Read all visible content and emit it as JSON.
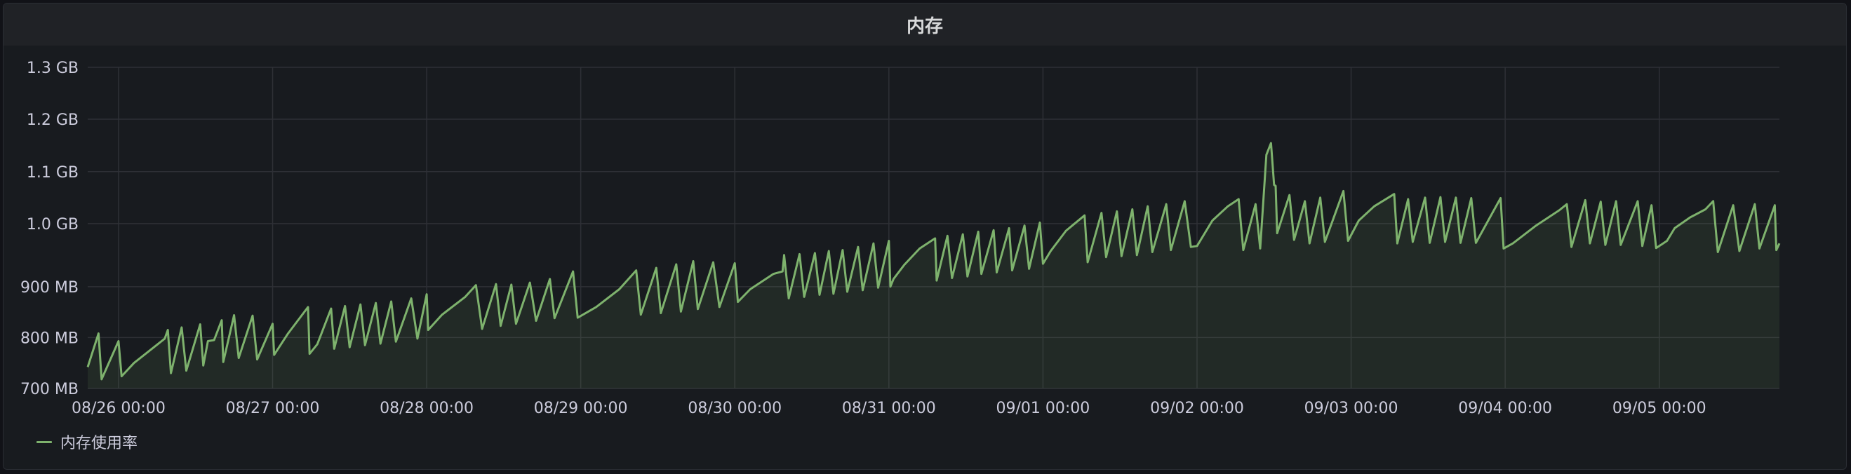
{
  "panel": {
    "title": "内存"
  },
  "colors": {
    "series": "#7eb26d",
    "grid": "#2e3036",
    "background": "#181b1f"
  },
  "chart_data": {
    "type": "area",
    "title": "内存",
    "ylim_mb": [
      700,
      1331
    ],
    "y_ticks": [
      {
        "value": 700,
        "label": "700 MB"
      },
      {
        "value": 800,
        "label": "800 MB"
      },
      {
        "value": 900,
        "label": "900 MB"
      },
      {
        "value": 1024,
        "label": "1.0 GB"
      },
      {
        "value": 1126,
        "label": "1.1 GB"
      },
      {
        "value": 1229,
        "label": "1.2 GB"
      },
      {
        "value": 1331,
        "label": "1.3 GB"
      }
    ],
    "xlim_days": [
      -0.2,
      10.78
    ],
    "x_ticks": [
      {
        "value": 0,
        "label": "08/26 00:00"
      },
      {
        "value": 1,
        "label": "08/27 00:00"
      },
      {
        "value": 2,
        "label": "08/28 00:00"
      },
      {
        "value": 3,
        "label": "08/29 00:00"
      },
      {
        "value": 4,
        "label": "08/30 00:00"
      },
      {
        "value": 5,
        "label": "08/31 00:00"
      },
      {
        "value": 6,
        "label": "09/01 00:00"
      },
      {
        "value": 7,
        "label": "09/02 00:00"
      },
      {
        "value": 8,
        "label": "09/03 00:00"
      },
      {
        "value": 9,
        "label": "09/04 00:00"
      },
      {
        "value": 10,
        "label": "09/05 00:00"
      }
    ],
    "series": [
      {
        "name": "内存使用率",
        "points": [
          [
            -0.2,
            742
          ],
          [
            -0.13,
            808
          ],
          [
            -0.11,
            718
          ],
          [
            0.0,
            793
          ],
          [
            0.02,
            724
          ],
          [
            0.1,
            750
          ],
          [
            0.3,
            798
          ],
          [
            0.32,
            815
          ],
          [
            0.34,
            730
          ],
          [
            0.41,
            820
          ],
          [
            0.44,
            735
          ],
          [
            0.53,
            826
          ],
          [
            0.55,
            745
          ],
          [
            0.58,
            793
          ],
          [
            0.62,
            795
          ],
          [
            0.67,
            834
          ],
          [
            0.68,
            752
          ],
          [
            0.75,
            844
          ],
          [
            0.78,
            760
          ],
          [
            0.87,
            843
          ],
          [
            0.9,
            757
          ],
          [
            1.0,
            827
          ],
          [
            1.01,
            766
          ],
          [
            1.1,
            808
          ],
          [
            1.23,
            860
          ],
          [
            1.24,
            768
          ],
          [
            1.29,
            787
          ],
          [
            1.38,
            857
          ],
          [
            1.4,
            778
          ],
          [
            1.47,
            862
          ],
          [
            1.5,
            781
          ],
          [
            1.57,
            865
          ],
          [
            1.6,
            785
          ],
          [
            1.67,
            868
          ],
          [
            1.7,
            788
          ],
          [
            1.77,
            871
          ],
          [
            1.8,
            792
          ],
          [
            1.9,
            877
          ],
          [
            1.94,
            798
          ],
          [
            2.0,
            885
          ],
          [
            2.01,
            815
          ],
          [
            2.1,
            845
          ],
          [
            2.25,
            880
          ],
          [
            2.32,
            903
          ],
          [
            2.36,
            817
          ],
          [
            2.45,
            905
          ],
          [
            2.48,
            823
          ],
          [
            2.55,
            904
          ],
          [
            2.58,
            827
          ],
          [
            2.67,
            908
          ],
          [
            2.71,
            833
          ],
          [
            2.8,
            915
          ],
          [
            2.83,
            838
          ],
          [
            2.95,
            930
          ],
          [
            2.98,
            839
          ],
          [
            3.1,
            860
          ],
          [
            3.25,
            895
          ],
          [
            3.36,
            932
          ],
          [
            3.39,
            845
          ],
          [
            3.49,
            937
          ],
          [
            3.52,
            848
          ],
          [
            3.62,
            944
          ],
          [
            3.65,
            851
          ],
          [
            3.73,
            950
          ],
          [
            3.76,
            856
          ],
          [
            3.86,
            948
          ],
          [
            3.9,
            860
          ],
          [
            4.0,
            946
          ],
          [
            4.02,
            870
          ],
          [
            4.1,
            895
          ],
          [
            4.25,
            925
          ],
          [
            4.31,
            930
          ],
          [
            4.32,
            962
          ],
          [
            4.35,
            877
          ],
          [
            4.42,
            964
          ],
          [
            4.45,
            880
          ],
          [
            4.52,
            966
          ],
          [
            4.55,
            884
          ],
          [
            4.61,
            970
          ],
          [
            4.64,
            886
          ],
          [
            4.7,
            972
          ],
          [
            4.73,
            890
          ],
          [
            4.8,
            978
          ],
          [
            4.83,
            893
          ],
          [
            4.9,
            985
          ],
          [
            4.93,
            898
          ],
          [
            5.0,
            990
          ],
          [
            5.01,
            900
          ],
          [
            5.03,
            915
          ],
          [
            5.1,
            943
          ],
          [
            5.2,
            975
          ],
          [
            5.3,
            995
          ],
          [
            5.31,
            912
          ],
          [
            5.38,
            1000
          ],
          [
            5.41,
            917
          ],
          [
            5.48,
            1003
          ],
          [
            5.51,
            920
          ],
          [
            5.58,
            1008
          ],
          [
            5.6,
            925
          ],
          [
            5.68,
            1011
          ],
          [
            5.7,
            928
          ],
          [
            5.78,
            1015
          ],
          [
            5.8,
            932
          ],
          [
            5.88,
            1020
          ],
          [
            5.91,
            935
          ],
          [
            5.98,
            1026
          ],
          [
            6.0,
            945
          ],
          [
            6.05,
            970
          ],
          [
            6.15,
            1010
          ],
          [
            6.27,
            1040
          ],
          [
            6.29,
            948
          ],
          [
            6.38,
            1045
          ],
          [
            6.41,
            958
          ],
          [
            6.48,
            1048
          ],
          [
            6.51,
            960
          ],
          [
            6.58,
            1052
          ],
          [
            6.61,
            962
          ],
          [
            6.68,
            1058
          ],
          [
            6.71,
            968
          ],
          [
            6.8,
            1062
          ],
          [
            6.83,
            972
          ],
          [
            6.92,
            1068
          ],
          [
            6.96,
            978
          ],
          [
            7.0,
            980
          ],
          [
            7.1,
            1030
          ],
          [
            7.2,
            1058
          ],
          [
            7.27,
            1072
          ],
          [
            7.3,
            972
          ],
          [
            7.38,
            1062
          ],
          [
            7.41,
            975
          ],
          [
            7.45,
            1159
          ],
          [
            7.48,
            1182
          ],
          [
            7.5,
            1100
          ],
          [
            7.51,
            1098
          ],
          [
            7.52,
            1005
          ],
          [
            7.6,
            1080
          ],
          [
            7.63,
            992
          ],
          [
            7.7,
            1068
          ],
          [
            7.73,
            985
          ],
          [
            7.8,
            1075
          ],
          [
            7.83,
            988
          ],
          [
            7.95,
            1088
          ],
          [
            7.98,
            990
          ],
          [
            8.05,
            1030
          ],
          [
            8.15,
            1058
          ],
          [
            8.28,
            1082
          ],
          [
            8.3,
            985
          ],
          [
            8.37,
            1072
          ],
          [
            8.4,
            988
          ],
          [
            8.48,
            1075
          ],
          [
            8.51,
            986
          ],
          [
            8.58,
            1076
          ],
          [
            8.61,
            988
          ],
          [
            8.68,
            1075
          ],
          [
            8.71,
            986
          ],
          [
            8.78,
            1074
          ],
          [
            8.81,
            986
          ],
          [
            8.97,
            1074
          ],
          [
            8.99,
            975
          ],
          [
            9.05,
            985
          ],
          [
            9.2,
            1020
          ],
          [
            9.35,
            1050
          ],
          [
            9.4,
            1062
          ],
          [
            9.43,
            978
          ],
          [
            9.52,
            1070
          ],
          [
            9.55,
            985
          ],
          [
            9.62,
            1067
          ],
          [
            9.65,
            982
          ],
          [
            9.72,
            1068
          ],
          [
            9.75,
            982
          ],
          [
            9.86,
            1068
          ],
          [
            9.89,
            980
          ],
          [
            9.95,
            1060
          ],
          [
            9.98,
            976
          ],
          [
            10.05,
            990
          ],
          [
            10.1,
            1015
          ],
          [
            10.2,
            1036
          ],
          [
            10.3,
            1052
          ],
          [
            10.35,
            1068
          ],
          [
            10.38,
            968
          ],
          [
            10.48,
            1060
          ],
          [
            10.52,
            970
          ],
          [
            10.62,
            1062
          ],
          [
            10.65,
            975
          ],
          [
            10.75,
            1060
          ],
          [
            10.76,
            972
          ],
          [
            10.78,
            985
          ]
        ]
      }
    ]
  }
}
